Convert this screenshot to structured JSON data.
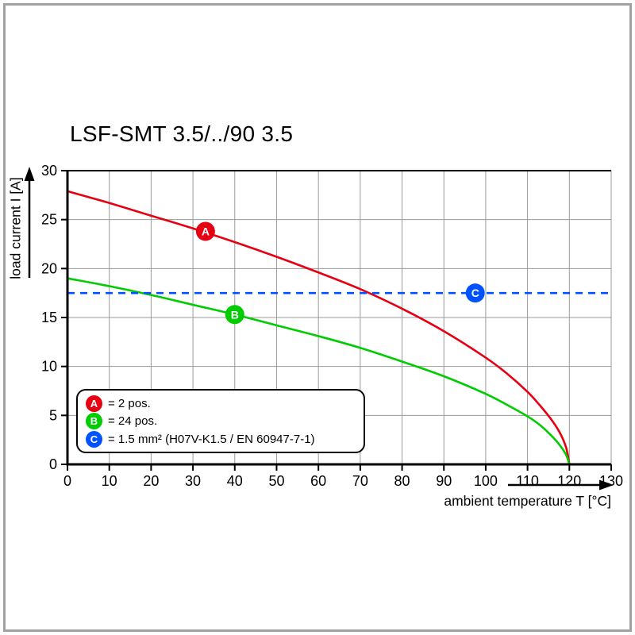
{
  "title": "LSF-SMT 3.5/../90 3.5",
  "chart_data": {
    "type": "line",
    "title": "LSF-SMT 3.5/../90 3.5",
    "xlabel": "ambient temperature T [°C]",
    "ylabel": "load current I [A]",
    "xlim": [
      0,
      130
    ],
    "ylim": [
      0,
      30
    ],
    "xticks": [
      0,
      10,
      20,
      30,
      40,
      50,
      60,
      70,
      80,
      90,
      100,
      110,
      120,
      130
    ],
    "yticks": [
      0,
      5,
      10,
      15,
      20,
      25,
      30
    ],
    "grid": true,
    "grid_color": "#9a9a9a",
    "legend_position": "bottom-left",
    "series": [
      {
        "name": "A",
        "label": "= 2 pos.",
        "color": "#e60012",
        "style": "solid",
        "marker": {
          "x": 33,
          "y": 23.8
        },
        "points": [
          [
            0,
            27.9
          ],
          [
            10,
            26.7
          ],
          [
            20,
            25.4
          ],
          [
            30,
            24.1
          ],
          [
            40,
            22.7
          ],
          [
            50,
            21.2
          ],
          [
            60,
            19.6
          ],
          [
            70,
            17.9
          ],
          [
            80,
            15.9
          ],
          [
            90,
            13.6
          ],
          [
            100,
            10.9
          ],
          [
            105,
            9.3
          ],
          [
            110,
            7.4
          ],
          [
            113,
            6.0
          ],
          [
            116,
            4.4
          ],
          [
            118,
            3.0
          ],
          [
            119.3,
            1.6
          ],
          [
            120,
            0
          ]
        ]
      },
      {
        "name": "B",
        "label": "= 24 pos.",
        "color": "#00cc00",
        "style": "solid",
        "marker": {
          "x": 40,
          "y": 15.3
        },
        "points": [
          [
            0,
            19.0
          ],
          [
            10,
            18.2
          ],
          [
            20,
            17.3
          ],
          [
            30,
            16.3
          ],
          [
            40,
            15.3
          ],
          [
            50,
            14.2
          ],
          [
            60,
            13.1
          ],
          [
            70,
            11.9
          ],
          [
            80,
            10.5
          ],
          [
            90,
            9.0
          ],
          [
            100,
            7.2
          ],
          [
            105,
            6.1
          ],
          [
            110,
            4.9
          ],
          [
            113,
            4.0
          ],
          [
            116,
            2.8
          ],
          [
            118,
            1.8
          ],
          [
            119.3,
            0.9
          ],
          [
            120,
            0
          ]
        ]
      },
      {
        "name": "C",
        "label": "= 1.5 mm² (H07V-K1.5 / EN 60947-7-1)",
        "color": "#0051ff",
        "style": "dashed",
        "marker": {
          "x": 97.5,
          "y": 17.5
        },
        "points": [
          [
            0,
            17.5
          ],
          [
            130,
            17.5
          ]
        ]
      }
    ]
  }
}
